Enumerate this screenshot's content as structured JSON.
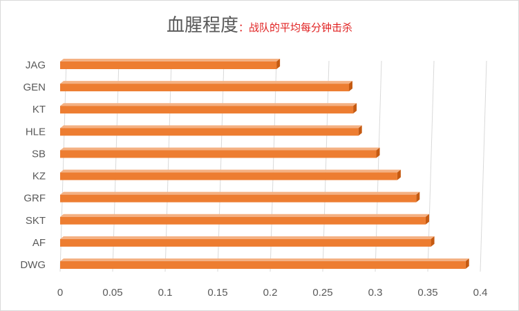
{
  "title": "血腥程度",
  "subtitle": "：战队的平均每分钟击杀",
  "colors": {
    "bar_front": "#ed7d31",
    "bar_top": "#f4b183",
    "bar_side": "#c55a11",
    "gridline": "#d9d9d9",
    "text": "#595959",
    "subtitle": "#e02020"
  },
  "chart_data": {
    "type": "bar",
    "orientation": "horizontal",
    "style": "3d",
    "title": "血腥程度",
    "subtitle": "：战队的平均每分钟击杀",
    "xlabel": "",
    "ylabel": "",
    "categories": [
      "JAG",
      "GEN",
      "KT",
      "HLE",
      "SB",
      "KZ",
      "GRF",
      "SKT",
      "AF",
      "DWG"
    ],
    "values": [
      0.206,
      0.275,
      0.279,
      0.284,
      0.301,
      0.321,
      0.339,
      0.348,
      0.353,
      0.386
    ],
    "xlim": [
      0,
      0.4
    ],
    "xticks": [
      0,
      0.05,
      0.1,
      0.15,
      0.2,
      0.25,
      0.3,
      0.35,
      0.4
    ],
    "xtick_labels": [
      "0",
      "0.05",
      "0.1",
      "0.15",
      "0.2",
      "0.25",
      "0.3",
      "0.35",
      "0.4"
    ],
    "grid": true,
    "legend": "none"
  }
}
